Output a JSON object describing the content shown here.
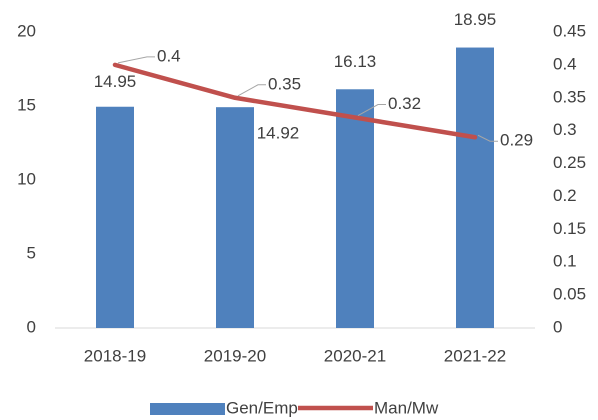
{
  "chart_data": {
    "type": "combo",
    "categories": [
      "2018-19",
      "2019-20",
      "2020-21",
      "2021-22"
    ],
    "series": [
      {
        "name": "Gen/Emp",
        "type": "bar",
        "color": "#4f81bd",
        "values": [
          14.95,
          14.92,
          16.13,
          18.95
        ]
      },
      {
        "name": "Man/Mw",
        "type": "line",
        "axis": "y2",
        "color": "#c0504d",
        "values": [
          0.4,
          0.35,
          0.32,
          0.29
        ]
      }
    ],
    "ylim": [
      0,
      20
    ],
    "yticks": [
      0,
      5,
      10,
      15,
      20
    ],
    "y2lim": [
      0,
      0.45
    ],
    "y2ticks": [
      0,
      0.05,
      0.1,
      0.15,
      0.2,
      0.25,
      0.3,
      0.35,
      0.4,
      0.45
    ],
    "legend": "bottom"
  }
}
